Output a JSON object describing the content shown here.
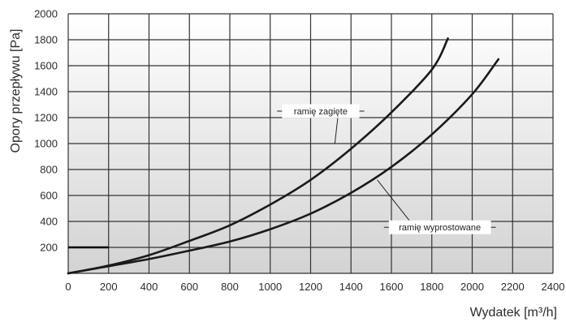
{
  "chart_data": {
    "type": "line",
    "xlabel": "Wydatek [m³/h]",
    "ylabel": "Opory przepływu [Pa]",
    "xlim": [
      0,
      2400
    ],
    "ylim": [
      0,
      2000
    ],
    "x_ticks": [
      "0",
      "200",
      "400",
      "600",
      "800",
      "1000",
      "1200",
      "1400",
      "1600",
      "1800",
      "2000",
      "2200",
      "2400"
    ],
    "y_ticks": [
      "200",
      "400",
      "600",
      "800",
      "1000",
      "1200",
      "1400",
      "1600",
      "1800",
      "2000"
    ],
    "grid": true,
    "background": "gradient-gray",
    "series": [
      {
        "name": "ramię zagięte",
        "x": [
          0,
          200,
          400,
          600,
          800,
          1000,
          1200,
          1400,
          1600,
          1800,
          1880
        ],
        "y": [
          0,
          60,
          140,
          250,
          370,
          530,
          720,
          960,
          1240,
          1570,
          1810
        ]
      },
      {
        "name": "ramię wyprostowane",
        "x": [
          0,
          200,
          400,
          600,
          800,
          1000,
          1200,
          1400,
          1600,
          1800,
          2000,
          2130
        ],
        "y": [
          0,
          55,
          110,
          175,
          245,
          340,
          460,
          620,
          820,
          1070,
          1380,
          1650
        ]
      }
    ],
    "annotations": [
      {
        "text": "ramię zagięte",
        "label_at": [
          1250,
          1250
        ],
        "arrow_to": [
          1320,
          1000
        ]
      },
      {
        "text": "ramię wyprostowane",
        "label_at": [
          1840,
          355
        ],
        "arrow_to": [
          1530,
          720
        ]
      }
    ],
    "marker_segment": {
      "y": 200,
      "x_from": 0,
      "x_to": 200
    }
  }
}
